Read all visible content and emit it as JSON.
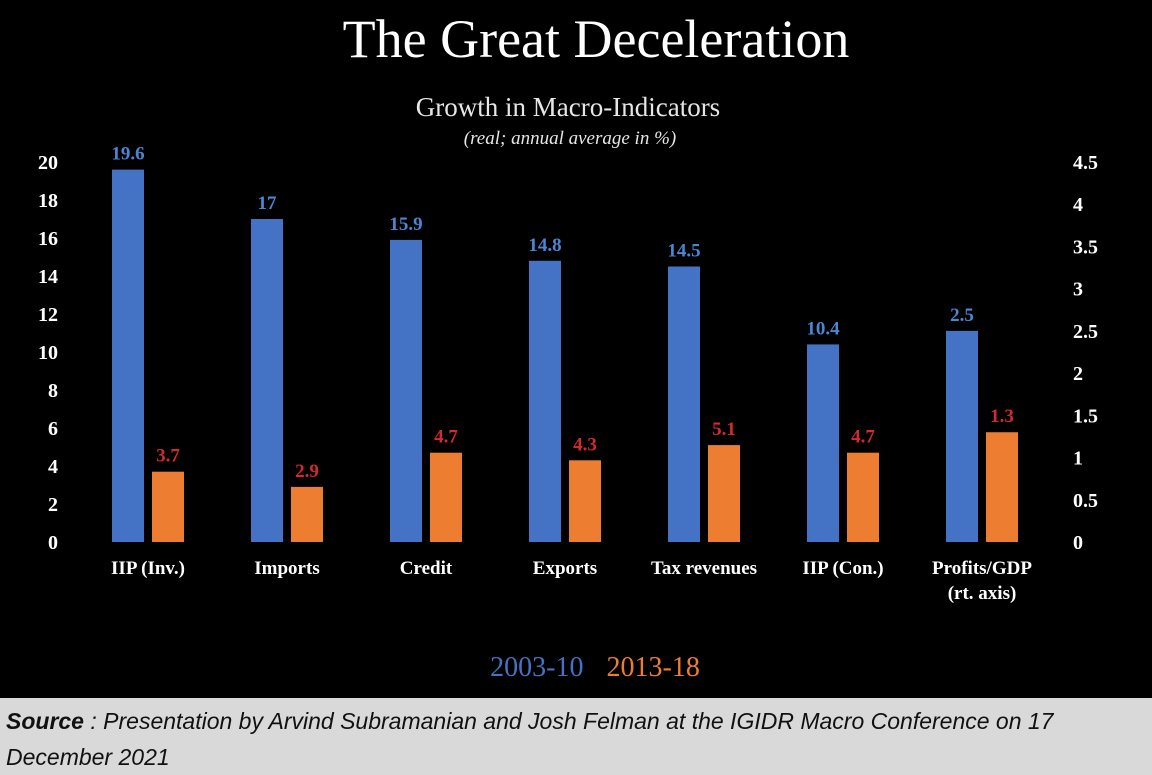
{
  "chart_data": {
    "type": "bar",
    "title": "The Great Deceleration",
    "subtitle": "Growth in Macro-Indicators",
    "note": "(real; annual average in %)",
    "categories": [
      "IIP (Inv.)",
      "Imports",
      "Credit",
      "Exports",
      "Tax revenues",
      "IIP (Con.)",
      "Profits/GDP (rt. axis)"
    ],
    "series": [
      {
        "name": "2003-10",
        "color": "#4472c4",
        "label_color": "#4a86d4",
        "values": [
          19.6,
          17,
          15.9,
          14.8,
          14.5,
          10.4,
          2.5
        ],
        "axis": [
          "left",
          "left",
          "left",
          "left",
          "left",
          "left",
          "right"
        ]
      },
      {
        "name": "2013-18",
        "color": "#ed7d31",
        "label_color": "#d22b2b",
        "values": [
          3.7,
          2.9,
          4.7,
          4.3,
          5.1,
          4.7,
          1.3
        ],
        "axis": [
          "left",
          "left",
          "left",
          "left",
          "left",
          "left",
          "right"
        ]
      }
    ],
    "y_left": {
      "min": 0,
      "max": 20,
      "ticks": [
        "0",
        "2",
        "4",
        "6",
        "8",
        "10",
        "12",
        "14",
        "16",
        "18",
        "20"
      ]
    },
    "y_right": {
      "min": 0,
      "max": 4.5,
      "ticks": [
        "0",
        "0.5",
        "1",
        "1.5",
        "2",
        "2.5",
        "3",
        "3.5",
        "4",
        "4.5"
      ]
    },
    "xlabel": "",
    "ylabel": "",
    "grid": false,
    "legend": "bottom"
  },
  "source": {
    "label": "Source",
    "text": " : Presentation by Arvind Subramanian and Josh Felman at the IGIDR Macro Conference on 17 December 2021"
  }
}
